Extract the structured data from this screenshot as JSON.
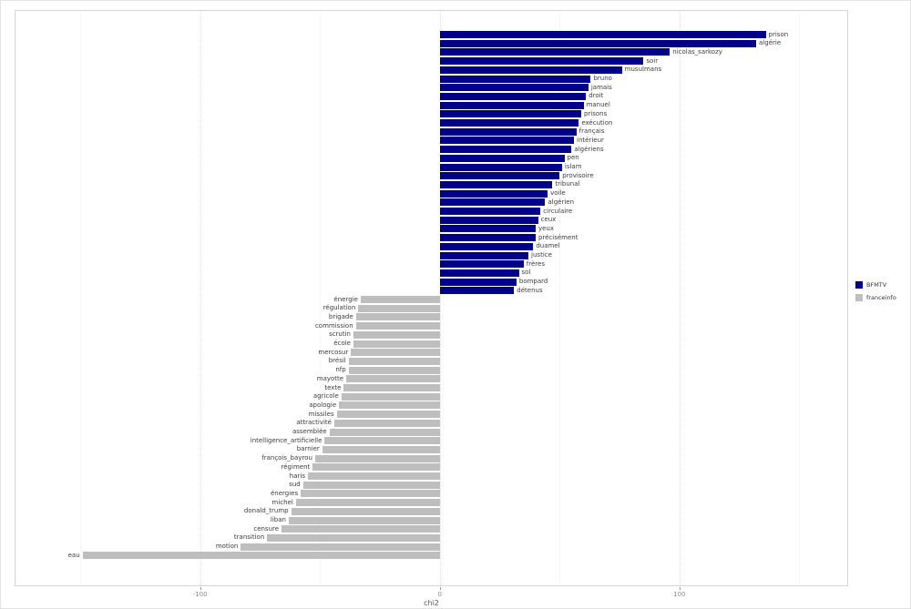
{
  "figure": {
    "background": "#ffffff"
  },
  "chart_data": {
    "type": "bar",
    "orientation": "horizontal",
    "title": "",
    "xlabel": "chi2",
    "ylabel": "",
    "xlim": [
      -177,
      170
    ],
    "x_major_ticks": [
      -100,
      0,
      100
    ],
    "x_minor_gridlines": [
      -150,
      -50,
      50,
      150
    ],
    "grid": true,
    "legend_position": "right",
    "series_colors": {
      "BFMTV": "#00008B",
      "franceinfo": "#BEBEBE"
    },
    "legend": [
      {
        "name": "BFMTV",
        "color": "#00008B"
      },
      {
        "name": "franceinfo",
        "color": "#BEBEBE"
      }
    ],
    "bars": [
      {
        "label": "prison",
        "value": 136,
        "group": "BFMTV"
      },
      {
        "label": "algérie",
        "value": 132,
        "group": "BFMTV"
      },
      {
        "label": "nicolas_sarkozy",
        "value": 96,
        "group": "BFMTV"
      },
      {
        "label": "soir",
        "value": 85,
        "group": "BFMTV"
      },
      {
        "label": "musulmans",
        "value": 76,
        "group": "BFMTV"
      },
      {
        "label": "bruno",
        "value": 63,
        "group": "BFMTV"
      },
      {
        "label": "jamais",
        "value": 62,
        "group": "BFMTV"
      },
      {
        "label": "droit",
        "value": 61,
        "group": "BFMTV"
      },
      {
        "label": "manuel",
        "value": 60,
        "group": "BFMTV"
      },
      {
        "label": "prisons",
        "value": 59,
        "group": "BFMTV"
      },
      {
        "label": "exécution",
        "value": 58,
        "group": "BFMTV"
      },
      {
        "label": "français",
        "value": 57,
        "group": "BFMTV"
      },
      {
        "label": "intérieur",
        "value": 56,
        "group": "BFMTV"
      },
      {
        "label": "algériens",
        "value": 55,
        "group": "BFMTV"
      },
      {
        "label": "pen",
        "value": 52,
        "group": "BFMTV"
      },
      {
        "label": "islam",
        "value": 51,
        "group": "BFMTV"
      },
      {
        "label": "provisoire",
        "value": 50,
        "group": "BFMTV"
      },
      {
        "label": "tribunal",
        "value": 47,
        "group": "BFMTV"
      },
      {
        "label": "voile",
        "value": 45,
        "group": "BFMTV"
      },
      {
        "label": "algérien",
        "value": 44,
        "group": "BFMTV"
      },
      {
        "label": "circulaire",
        "value": 42,
        "group": "BFMTV"
      },
      {
        "label": "ceux",
        "value": 41,
        "group": "BFMTV"
      },
      {
        "label": "yeux",
        "value": 40,
        "group": "BFMTV"
      },
      {
        "label": "précisément",
        "value": 40,
        "group": "BFMTV"
      },
      {
        "label": "duamel",
        "value": 39,
        "group": "BFMTV"
      },
      {
        "label": "justice",
        "value": 37,
        "group": "BFMTV"
      },
      {
        "label": "frères",
        "value": 35,
        "group": "BFMTV"
      },
      {
        "label": "sol",
        "value": 33,
        "group": "BFMTV"
      },
      {
        "label": "bompard",
        "value": 32,
        "group": "BFMTV"
      },
      {
        "label": "détenus",
        "value": 31,
        "group": "BFMTV"
      },
      {
        "label": "énergie",
        "value": -33,
        "group": "franceinfo"
      },
      {
        "label": "régulation",
        "value": -34,
        "group": "franceinfo"
      },
      {
        "label": "brigade",
        "value": -35,
        "group": "franceinfo"
      },
      {
        "label": "commission",
        "value": -35,
        "group": "franceinfo"
      },
      {
        "label": "scrutin",
        "value": -36,
        "group": "franceinfo"
      },
      {
        "label": "école",
        "value": -36,
        "group": "franceinfo"
      },
      {
        "label": "mercosur",
        "value": -37,
        "group": "franceinfo"
      },
      {
        "label": "brésil",
        "value": -38,
        "group": "franceinfo"
      },
      {
        "label": "nfp",
        "value": -38,
        "group": "franceinfo"
      },
      {
        "label": "mayotte",
        "value": -39,
        "group": "franceinfo"
      },
      {
        "label": "texte",
        "value": -40,
        "group": "franceinfo"
      },
      {
        "label": "agricole",
        "value": -41,
        "group": "franceinfo"
      },
      {
        "label": "apologie",
        "value": -42,
        "group": "franceinfo"
      },
      {
        "label": "missiles",
        "value": -43,
        "group": "franceinfo"
      },
      {
        "label": "attractivité",
        "value": -44,
        "group": "franceinfo"
      },
      {
        "label": "assemblée",
        "value": -46,
        "group": "franceinfo"
      },
      {
        "label": "intelligence_artificielle",
        "value": -48,
        "group": "franceinfo"
      },
      {
        "label": "barnier",
        "value": -49,
        "group": "franceinfo"
      },
      {
        "label": "françois_bayrou",
        "value": -52,
        "group": "franceinfo"
      },
      {
        "label": "régiment",
        "value": -53,
        "group": "franceinfo"
      },
      {
        "label": "haris",
        "value": -55,
        "group": "franceinfo"
      },
      {
        "label": "sud",
        "value": -57,
        "group": "franceinfo"
      },
      {
        "label": "énergies",
        "value": -58,
        "group": "franceinfo"
      },
      {
        "label": "michel",
        "value": -60,
        "group": "franceinfo"
      },
      {
        "label": "donald_trump",
        "value": -62,
        "group": "franceinfo"
      },
      {
        "label": "liban",
        "value": -63,
        "group": "franceinfo"
      },
      {
        "label": "censure",
        "value": -66,
        "group": "franceinfo"
      },
      {
        "label": "transition",
        "value": -72,
        "group": "franceinfo"
      },
      {
        "label": "motion",
        "value": -83,
        "group": "franceinfo"
      },
      {
        "label": "eau",
        "value": -149,
        "group": "franceinfo"
      }
    ]
  }
}
